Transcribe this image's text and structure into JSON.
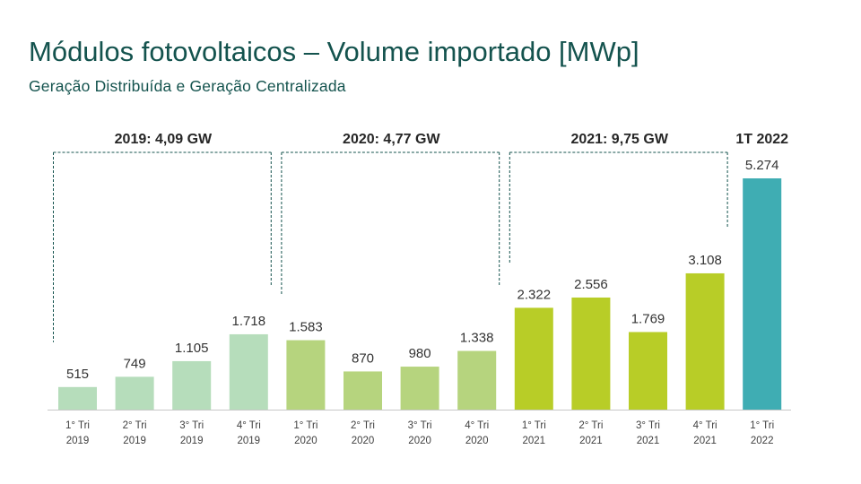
{
  "title": "Módulos fotovoltaicos – Volume importado [MWp]",
  "subtitle": "Geração  Distribuída e Geração  Centralizada",
  "chart_data": {
    "type": "bar",
    "title": "Módulos fotovoltaicos – Volume importado [MWp]",
    "subtitle": "Geração  Distribuída e Geração  Centralizada",
    "categories": [
      [
        "1° Tri",
        "2019"
      ],
      [
        "2° Tri",
        "2019"
      ],
      [
        "3° Tri",
        "2019"
      ],
      [
        "4° Tri",
        "2019"
      ],
      [
        "1° Tri",
        "2020"
      ],
      [
        "2° Tri",
        "2020"
      ],
      [
        "3° Tri",
        "2020"
      ],
      [
        "4° Tri",
        "2020"
      ],
      [
        "1° Tri",
        "2021"
      ],
      [
        "2° Tri",
        "2021"
      ],
      [
        "3° Tri",
        "2021"
      ],
      [
        "4° Tri",
        "2021"
      ],
      [
        "1° Tri",
        "2022"
      ]
    ],
    "values": [
      515,
      749,
      1105,
      1718,
      1583,
      870,
      980,
      1338,
      2322,
      2556,
      1769,
      3108,
      5274
    ],
    "value_labels": [
      "515",
      "749",
      "1.105",
      "1.718",
      "1.583",
      "870",
      "980",
      "1.338",
      "2.322",
      "2.556",
      "1.769",
      "3.108",
      "5.274"
    ],
    "bar_colors": [
      "#b6ddbb",
      "#b6ddbb",
      "#b6ddbb",
      "#b6ddbb",
      "#b6d47e",
      "#b6d47e",
      "#b6d47e",
      "#b6d47e",
      "#b8cd27",
      "#b8cd27",
      "#b8cd27",
      "#b8cd27",
      "#3fadb3"
    ],
    "groups": [
      {
        "label": "2019: 4,09 GW",
        "from": 0,
        "to": 3
      },
      {
        "label": "2020: 4,77 GW",
        "from": 4,
        "to": 7
      },
      {
        "label": "2021: 9,75 GW",
        "from": 8,
        "to": 11
      },
      {
        "label": "1T 2022",
        "from": 12,
        "to": 12
      }
    ],
    "ylim": [
      0,
      5274
    ],
    "xlabel": "",
    "ylabel": "",
    "grid": false
  }
}
